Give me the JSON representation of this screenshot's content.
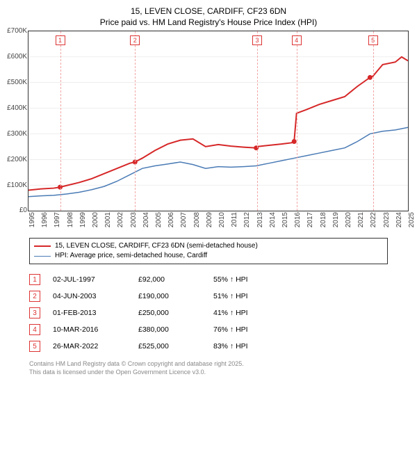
{
  "title_line1": "15, LEVEN CLOSE, CARDIFF, CF23 6DN",
  "title_line2": "Price paid vs. HM Land Registry's House Price Index (HPI)",
  "chart": {
    "type": "line",
    "background_color": "#ffffff",
    "grid_color": "#dddddd",
    "border_color": "#333333",
    "x_min": 1995,
    "x_max": 2025,
    "y_min": 0,
    "y_max": 700,
    "y_ticks": [
      0,
      100,
      200,
      300,
      400,
      500,
      600,
      700
    ],
    "y_tick_labels": [
      "£0",
      "£100K",
      "£200K",
      "£300K",
      "£400K",
      "£500K",
      "£600K",
      "£700K"
    ],
    "x_ticks": [
      1995,
      1996,
      1997,
      1998,
      1999,
      2000,
      2001,
      2002,
      2003,
      2004,
      2005,
      2006,
      2007,
      2008,
      2009,
      2010,
      2011,
      2012,
      2013,
      2014,
      2015,
      2016,
      2017,
      2018,
      2019,
      2020,
      2021,
      2022,
      2023,
      2024,
      2025
    ],
    "tick_fontsize": 10,
    "tick_color": "#444444",
    "series": [
      {
        "name": "price_paid",
        "label": "15, LEVEN CLOSE, CARDIFF, CF23 6DN (semi-detached house)",
        "color": "#d62728",
        "line_width": 2,
        "points": [
          [
            1995,
            80
          ],
          [
            1996,
            85
          ],
          [
            1997,
            88
          ],
          [
            1997.5,
            92
          ],
          [
            1998,
            98
          ],
          [
            1999,
            110
          ],
          [
            2000,
            125
          ],
          [
            2001,
            145
          ],
          [
            2002,
            165
          ],
          [
            2003,
            185
          ],
          [
            2003.42,
            190
          ],
          [
            2004,
            205
          ],
          [
            2005,
            235
          ],
          [
            2006,
            260
          ],
          [
            2007,
            275
          ],
          [
            2008,
            280
          ],
          [
            2009,
            250
          ],
          [
            2010,
            258
          ],
          [
            2011,
            252
          ],
          [
            2012,
            248
          ],
          [
            2013,
            245
          ],
          [
            2013.08,
            250
          ],
          [
            2014,
            255
          ],
          [
            2015,
            260
          ],
          [
            2015.8,
            265
          ],
          [
            2016,
            270
          ],
          [
            2016.19,
            380
          ],
          [
            2017,
            395
          ],
          [
            2018,
            415
          ],
          [
            2019,
            430
          ],
          [
            2020,
            445
          ],
          [
            2021,
            485
          ],
          [
            2022,
            520
          ],
          [
            2022.23,
            525
          ],
          [
            2023,
            570
          ],
          [
            2024,
            580
          ],
          [
            2024.5,
            600
          ],
          [
            2025,
            585
          ]
        ]
      },
      {
        "name": "hpi",
        "label": "HPI: Average price, semi-detached house, Cardiff",
        "color": "#4a7bb5",
        "line_width": 1.5,
        "points": [
          [
            1995,
            55
          ],
          [
            1996,
            58
          ],
          [
            1997,
            60
          ],
          [
            1998,
            65
          ],
          [
            1999,
            72
          ],
          [
            2000,
            82
          ],
          [
            2001,
            95
          ],
          [
            2002,
            115
          ],
          [
            2003,
            140
          ],
          [
            2004,
            165
          ],
          [
            2005,
            175
          ],
          [
            2006,
            182
          ],
          [
            2007,
            190
          ],
          [
            2008,
            180
          ],
          [
            2009,
            165
          ],
          [
            2010,
            172
          ],
          [
            2011,
            170
          ],
          [
            2012,
            172
          ],
          [
            2013,
            175
          ],
          [
            2014,
            185
          ],
          [
            2015,
            195
          ],
          [
            2016,
            205
          ],
          [
            2017,
            215
          ],
          [
            2018,
            225
          ],
          [
            2019,
            235
          ],
          [
            2020,
            245
          ],
          [
            2021,
            270
          ],
          [
            2022,
            300
          ],
          [
            2023,
            310
          ],
          [
            2024,
            315
          ],
          [
            2025,
            325
          ]
        ]
      }
    ],
    "markers": [
      {
        "n": 1,
        "x": 1997.5
      },
      {
        "n": 2,
        "x": 2003.42
      },
      {
        "n": 3,
        "x": 2013.08
      },
      {
        "n": 4,
        "x": 2016.19
      },
      {
        "n": 5,
        "x": 2022.23
      }
    ],
    "marker_color": "#d62728",
    "marker_vline_color": "#f3a6a6"
  },
  "legend": {
    "items": [
      {
        "color": "#d62728",
        "width": 2,
        "label": "15, LEVEN CLOSE, CARDIFF, CF23 6DN (semi-detached house)"
      },
      {
        "color": "#4a7bb5",
        "width": 1.5,
        "label": "HPI: Average price, semi-detached house, Cardiff"
      }
    ]
  },
  "transactions": [
    {
      "n": "1",
      "date": "02-JUL-1997",
      "price": "£92,000",
      "hpi": "55% ↑ HPI"
    },
    {
      "n": "2",
      "date": "04-JUN-2003",
      "price": "£190,000",
      "hpi": "51% ↑ HPI"
    },
    {
      "n": "3",
      "date": "01-FEB-2013",
      "price": "£250,000",
      "hpi": "41% ↑ HPI"
    },
    {
      "n": "4",
      "date": "10-MAR-2016",
      "price": "£380,000",
      "hpi": "76% ↑ HPI"
    },
    {
      "n": "5",
      "date": "26-MAR-2022",
      "price": "£525,000",
      "hpi": "83% ↑ HPI"
    }
  ],
  "footer_line1": "Contains HM Land Registry data © Crown copyright and database right 2025.",
  "footer_line2": "This data is licensed under the Open Government Licence v3.0."
}
